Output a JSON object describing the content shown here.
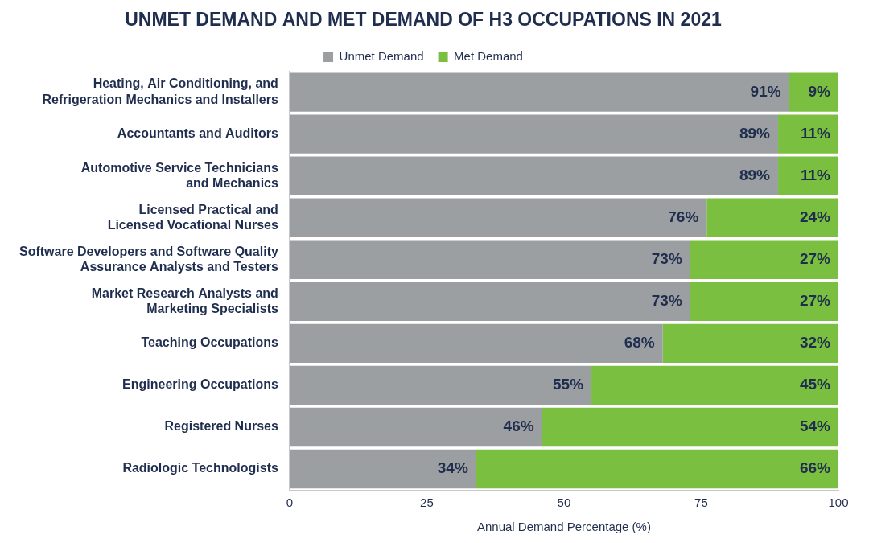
{
  "chart_data": {
    "type": "bar",
    "title": "UNMET DEMAND AND MET DEMAND OF H3 OCCUPATIONS IN 2021",
    "orientation": "horizontal",
    "stacked": true,
    "data_labels": true,
    "grid": false,
    "legend": "top",
    "x_label": "Annual Demand Percentage (%)",
    "categories": [
      [
        "Heating, Air Conditioning, and",
        "Refrigeration Mechanics and Installers"
      ],
      "Accountants and Auditors",
      [
        "Automotive Service Technicians",
        "and Mechanics"
      ],
      [
        "Licensed Practical and",
        "Licensed Vocational Nurses"
      ],
      [
        "Software Developers and Software Quality",
        "Assurance Analysts and Testers"
      ],
      [
        "Market Research Analysts and",
        "Marketing Specialists"
      ],
      "Teaching Occupations",
      "Engineering Occupations",
      "Registered Nurses",
      "Radiologic Technologists"
    ],
    "series": [
      {
        "name": "Unmet Demand",
        "color": "#9c9fa1",
        "values": [
          91,
          89,
          89,
          76,
          73,
          73,
          68,
          55,
          46,
          34
        ],
        "value_labels": [
          "91%",
          "89%",
          "89%",
          "76%",
          "73%",
          "73%",
          "68%",
          "55%",
          "46%",
          "34%"
        ]
      },
      {
        "name": "Met Demand",
        "color": "#7abf3f",
        "values": [
          9,
          11,
          11,
          24,
          27,
          27,
          32,
          45,
          54,
          66
        ],
        "value_labels": [
          "9%",
          "11%",
          "11%",
          "24%",
          "27%",
          "27%",
          "32%",
          "45%",
          "54%",
          "66%"
        ]
      }
    ],
    "xlim": [
      0,
      100
    ],
    "xticks": [
      0,
      25,
      50,
      75,
      100
    ]
  }
}
